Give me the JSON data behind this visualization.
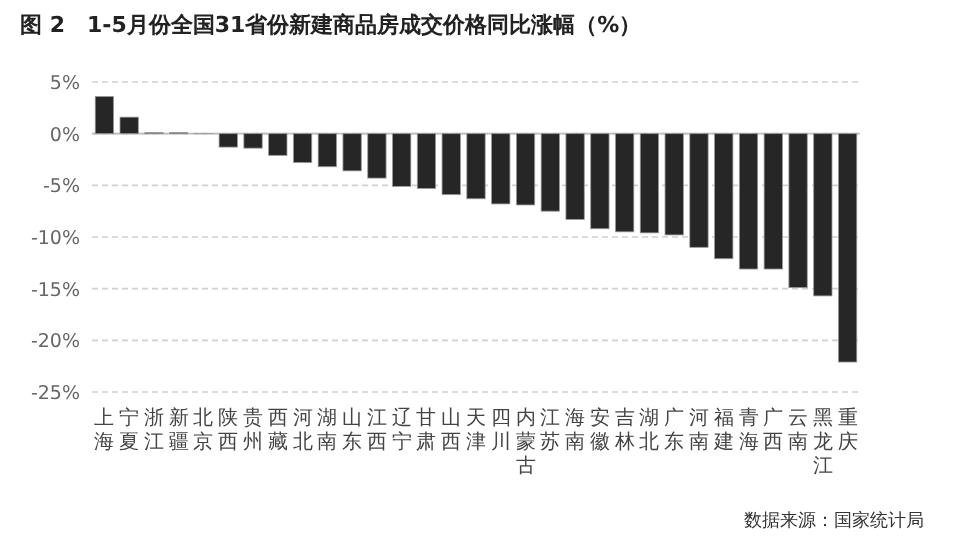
{
  "chart_data": {
    "type": "bar",
    "title": "图 2　1-5月份全国31省份新建商品房成交价格同比涨幅（%）",
    "categories": [
      "上海",
      "宁夏",
      "浙江",
      "新疆",
      "北京",
      "陕西",
      "贵州",
      "西藏",
      "河北",
      "湖南",
      "山东",
      "江西",
      "辽宁",
      "甘肃",
      "山西",
      "天津",
      "四川",
      "内蒙古",
      "江苏",
      "海南",
      "安徽",
      "吉林",
      "湖北",
      "广东",
      "河南",
      "福建",
      "青海",
      "广西",
      "云南",
      "黑龙江",
      "重庆"
    ],
    "values": [
      3.6,
      1.6,
      0.1,
      0.1,
      0,
      -1.3,
      -1.4,
      -2.1,
      -2.8,
      -3.2,
      -3.6,
      -4.3,
      -5.1,
      -5.3,
      -5.9,
      -6.3,
      -6.8,
      -6.9,
      -7.5,
      -8.3,
      -9.2,
      -9.5,
      -9.6,
      -9.8,
      -11.0,
      -12.1,
      -13.1,
      -13.1,
      -14.9,
      -15.7,
      -22.1
    ],
    "color": "#262626",
    "ylim": [
      -25,
      5
    ],
    "yticks": [
      {
        "value": 5,
        "label": "5%"
      },
      {
        "value": 0,
        "label": "0%"
      },
      {
        "value": -5,
        "label": "-5%"
      },
      {
        "value": -10,
        "label": "-10%"
      },
      {
        "value": -15,
        "label": "-15%"
      },
      {
        "value": -20,
        "label": "-20%"
      },
      {
        "value": -25,
        "label": "-25%"
      }
    ],
    "grid": "y",
    "annotations": [
      "数据来源：国家统计局"
    ]
  }
}
